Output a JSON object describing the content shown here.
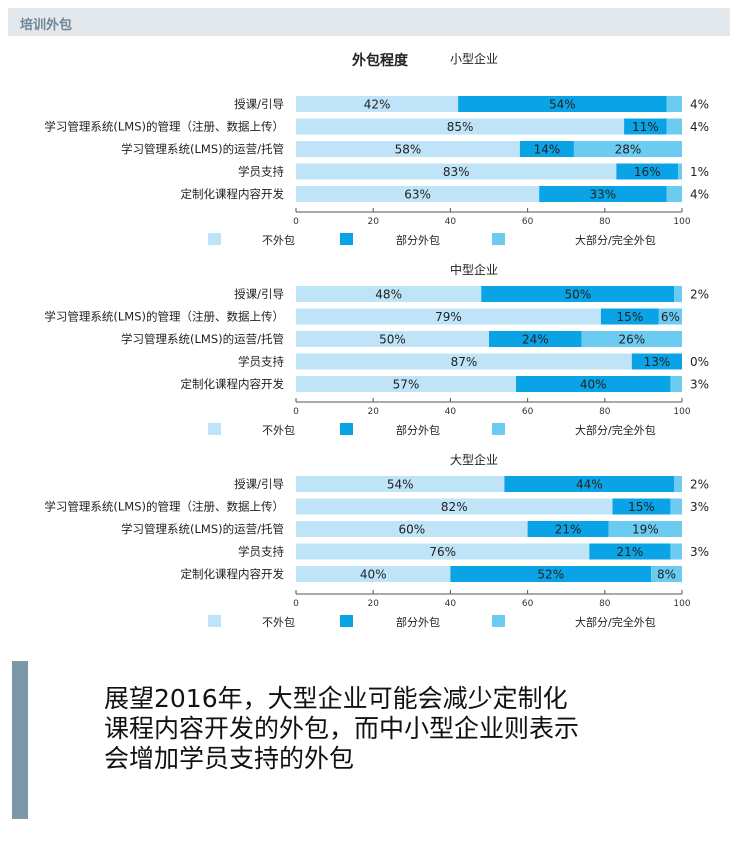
{
  "header": {
    "title": "培训外包"
  },
  "main_title": "外包程度",
  "colors": {
    "none": "#bfe4f7",
    "partial": "#0aa3e6",
    "most": "#6ccbf1"
  },
  "chart_data": [
    {
      "type": "bar",
      "stacked": true,
      "orientation": "horizontal",
      "title": "小型企业",
      "categories": [
        "授课/引导",
        "学习管理系统(LMS)的管理（注册、数据上传）",
        "学习管理系统(LMS)的运营/托管",
        "学员支持",
        "定制化课程内容开发"
      ],
      "series": [
        {
          "name": "不外包",
          "values": [
            42,
            85,
            58,
            83,
            63
          ]
        },
        {
          "name": "部分外包",
          "values": [
            54,
            11,
            14,
            16,
            33
          ]
        },
        {
          "name": "大部分/完全外包",
          "values": [
            4,
            4,
            28,
            1,
            4
          ]
        }
      ],
      "xlim": [
        0,
        100
      ],
      "xticks": [
        "0",
        "20",
        "40",
        "60",
        "80",
        "100"
      ],
      "legend": "bottom"
    },
    {
      "type": "bar",
      "stacked": true,
      "orientation": "horizontal",
      "title": "中型企业",
      "categories": [
        "授课/引导",
        "学习管理系统(LMS)的管理（注册、数据上传）",
        "学习管理系统(LMS)的运营/托管",
        "学员支持",
        "定制化课程内容开发"
      ],
      "series": [
        {
          "name": "不外包",
          "values": [
            48,
            79,
            50,
            87,
            57
          ]
        },
        {
          "name": "部分外包",
          "values": [
            50,
            15,
            24,
            13,
            40
          ]
        },
        {
          "name": "大部分/完全外包",
          "values": [
            2,
            6,
            26,
            0,
            3
          ]
        }
      ],
      "xlim": [
        0,
        100
      ],
      "xticks": [
        "0",
        "20",
        "40",
        "60",
        "80",
        "100"
      ],
      "legend": "bottom"
    },
    {
      "type": "bar",
      "stacked": true,
      "orientation": "horizontal",
      "title": "大型企业",
      "categories": [
        "授课/引导",
        "学习管理系统(LMS)的管理（注册、数据上传）",
        "学习管理系统(LMS)的运营/托管",
        "学员支持",
        "定制化课程内容开发"
      ],
      "series": [
        {
          "name": "不外包",
          "values": [
            54,
            82,
            60,
            76,
            40
          ]
        },
        {
          "name": "部分外包",
          "values": [
            44,
            15,
            21,
            21,
            52
          ]
        },
        {
          "name": "大部分/完全外包",
          "values": [
            2,
            3,
            19,
            3,
            8
          ]
        }
      ],
      "xlim": [
        0,
        100
      ],
      "xticks": [
        "0",
        "20",
        "40",
        "60",
        "80",
        "100"
      ],
      "legend": "bottom"
    }
  ],
  "note": {
    "lines": [
      "展望2016年，大型企业可能会减少定制化",
      "课程内容开发的外包，而中小型企业则表示",
      "会增加学员支持的外包"
    ]
  }
}
